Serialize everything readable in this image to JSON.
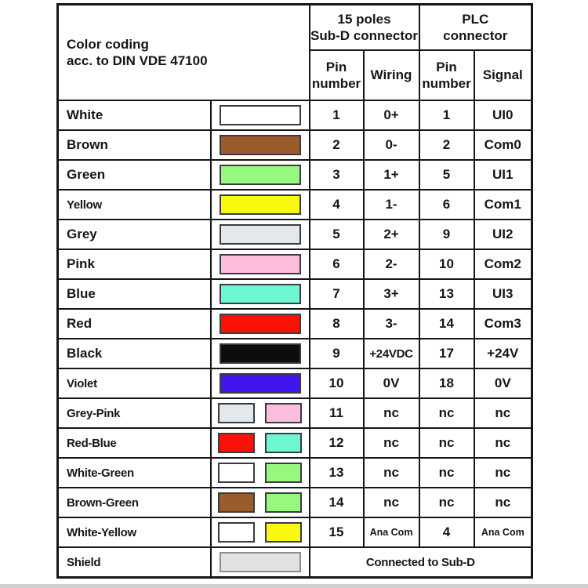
{
  "page": {
    "background": "#ffffff",
    "bottom_strip_color": "#cfcfcf"
  },
  "palette": {
    "white": "#ffffff",
    "brown": "#9a5c2b",
    "green": "#97f87e",
    "yellow": "#f8f810",
    "grey": "#e3e8ea",
    "pink": "#fdbedd",
    "blue": "#6ef8d2",
    "red": "#fb1105",
    "black": "#0d0d0d",
    "violet": "#3f16f0",
    "shield": "#e2e2e2"
  },
  "table": {
    "header": {
      "color_coding": "Color coding\nacc. to DIN VDE 47100",
      "subd_group": "15 poles\nSub-D connector",
      "plc_group": "PLC\nconnector",
      "col_pin_subd": "Pin\nnumber",
      "col_wiring": "Wiring",
      "col_pin_plc": "Pin\nnumber",
      "col_signal": "Signal"
    },
    "rows": [
      {
        "name": "White",
        "swatches": [
          "white"
        ],
        "pin_subd": "1",
        "wiring": "0+",
        "pin_plc": "1",
        "signal": "UI0"
      },
      {
        "name": "Brown",
        "swatches": [
          "brown"
        ],
        "pin_subd": "2",
        "wiring": "0-",
        "pin_plc": "2",
        "signal": "Com0"
      },
      {
        "name": "Green",
        "swatches": [
          "green"
        ],
        "pin_subd": "3",
        "wiring": "1+",
        "pin_plc": "5",
        "signal": "UI1"
      },
      {
        "name": "Yellow",
        "swatches": [
          "yellow"
        ],
        "pin_subd": "4",
        "wiring": "1-",
        "pin_plc": "6",
        "signal": "Com1"
      },
      {
        "name": "Grey",
        "swatches": [
          "grey"
        ],
        "pin_subd": "5",
        "wiring": "2+",
        "pin_plc": "9",
        "signal": "UI2"
      },
      {
        "name": "Pink",
        "swatches": [
          "pink"
        ],
        "pin_subd": "6",
        "wiring": "2-",
        "pin_plc": "10",
        "signal": "Com2"
      },
      {
        "name": "Blue",
        "swatches": [
          "blue"
        ],
        "pin_subd": "7",
        "wiring": "3+",
        "pin_plc": "13",
        "signal": "UI3"
      },
      {
        "name": "Red",
        "swatches": [
          "red"
        ],
        "pin_subd": "8",
        "wiring": "3-",
        "pin_plc": "14",
        "signal": "Com3"
      },
      {
        "name": "Black",
        "swatches": [
          "black"
        ],
        "pin_subd": "9",
        "wiring": "+24VDC",
        "pin_plc": "17",
        "signal": "+24V"
      },
      {
        "name": "Violet",
        "swatches": [
          "violet"
        ],
        "pin_subd": "10",
        "wiring": "0V",
        "pin_plc": "18",
        "signal": "0V"
      },
      {
        "name": "Grey-Pink",
        "swatches": [
          "grey",
          "pink"
        ],
        "pin_subd": "11",
        "wiring": "nc",
        "pin_plc": "nc",
        "signal": "nc"
      },
      {
        "name": "Red-Blue",
        "swatches": [
          "red",
          "blue"
        ],
        "pin_subd": "12",
        "wiring": "nc",
        "pin_plc": "nc",
        "signal": "nc"
      },
      {
        "name": "White-Green",
        "swatches": [
          "white",
          "green"
        ],
        "pin_subd": "13",
        "wiring": "nc",
        "pin_plc": "nc",
        "signal": "nc"
      },
      {
        "name": "Brown-Green",
        "swatches": [
          "brown",
          "green"
        ],
        "pin_subd": "14",
        "wiring": "nc",
        "pin_plc": "nc",
        "signal": "nc"
      },
      {
        "name": "White-Yellow",
        "swatches": [
          "white",
          "yellow"
        ],
        "pin_subd": "15",
        "wiring": "Ana Com",
        "pin_plc": "4",
        "signal": "Ana Com"
      }
    ],
    "shield_row": {
      "name": "Shield",
      "swatch": "shield",
      "note": "Connected to Sub-D"
    }
  }
}
